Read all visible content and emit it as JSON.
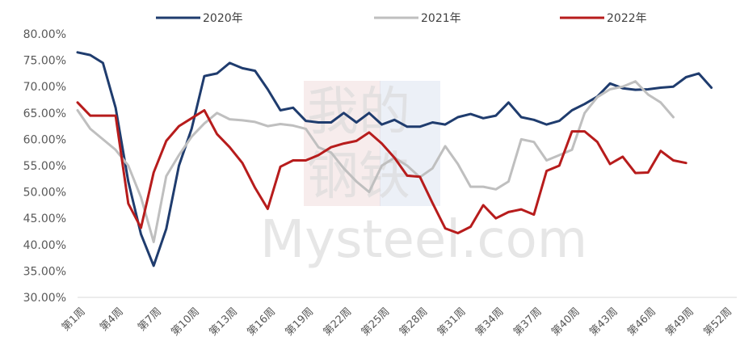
{
  "chart_data": {
    "type": "line",
    "ylim": [
      30,
      80
    ],
    "yticks": [
      "30.00%",
      "35.00%",
      "40.00%",
      "45.00%",
      "50.00%",
      "55.00%",
      "60.00%",
      "65.00%",
      "70.00%",
      "75.00%",
      "80.00%"
    ],
    "tick_labels": [
      "第1周",
      "第4周",
      "第7周",
      "第10周",
      "第13周",
      "第16周",
      "第19周",
      "第22周",
      "第25周",
      "第28周",
      "第31周",
      "第34周",
      "第37周",
      "第40周",
      "第43周",
      "第46周",
      "第49周",
      "第52周"
    ],
    "weeks": [
      1,
      2,
      3,
      4,
      5,
      6,
      7,
      8,
      9,
      10,
      11,
      12,
      13,
      14,
      15,
      16,
      17,
      18,
      19,
      20,
      21,
      22,
      23,
      24,
      25,
      26,
      27,
      28,
      29,
      30,
      31,
      32,
      33,
      34,
      35,
      36,
      37,
      38,
      39,
      40,
      41,
      42,
      43,
      44,
      45,
      46,
      47,
      48,
      49,
      50,
      51,
      52,
      53
    ],
    "series": [
      {
        "name": "2020年",
        "color": "#1f3c6e",
        "values": [
          76.5,
          76,
          74.5,
          66,
          52,
          42,
          36,
          43,
          55,
          62,
          72,
          72.5,
          74.5,
          73.5,
          73,
          69.5,
          65.5,
          66,
          63.5,
          63.2,
          63.2,
          65,
          63.2,
          65,
          62.8,
          63.7,
          62.4,
          62.4,
          63.2,
          62.8,
          64.2,
          64.8,
          64.0,
          64.5,
          67,
          64.2,
          63.7,
          62.8,
          63.5,
          65.5,
          66.7,
          68.1,
          70.6,
          69.7,
          69.4,
          69.5,
          69.8,
          70,
          71.8,
          72.5,
          69.8
        ]
      },
      {
        "name": "2021年",
        "color": "#bfbfbf",
        "values": [
          65.5,
          62,
          60,
          58,
          55,
          49,
          40.5,
          53,
          57,
          60.5,
          63,
          65,
          63.8,
          63.6,
          63.3,
          62.5,
          62.9,
          62.6,
          62,
          58.5,
          57.5,
          54.5,
          52,
          50,
          55,
          56.5,
          55,
          52.8,
          54.5,
          58.7,
          55.3,
          51,
          51,
          50.5,
          52,
          60,
          59.5,
          56,
          57,
          58,
          65,
          68,
          69.5,
          70,
          71,
          68.5,
          67,
          64.2
        ]
      },
      {
        "name": "2022年",
        "color": "#b71c1c",
        "values": [
          67,
          64.5,
          64.5,
          64.5,
          47.8,
          43.2,
          53.7,
          59.7,
          62.5,
          64,
          65.5,
          61,
          58.5,
          55.5,
          50.8,
          46.8,
          54.8,
          56,
          56,
          57,
          58.5,
          59.2,
          59.7,
          61.3,
          59.2,
          56.5,
          53.1,
          52.9,
          47.9,
          43.1,
          42.2,
          43.4,
          47.5,
          45.0,
          46.2,
          46.7,
          45.7,
          54,
          55,
          61.5,
          61.5,
          59.5,
          55.3,
          56.7,
          53.6,
          53.7,
          57.8,
          56,
          55.5
        ]
      }
    ]
  },
  "watermark": {
    "brand": "Mysteel.com",
    "logo_chars": [
      "我的",
      "钢铁"
    ]
  }
}
